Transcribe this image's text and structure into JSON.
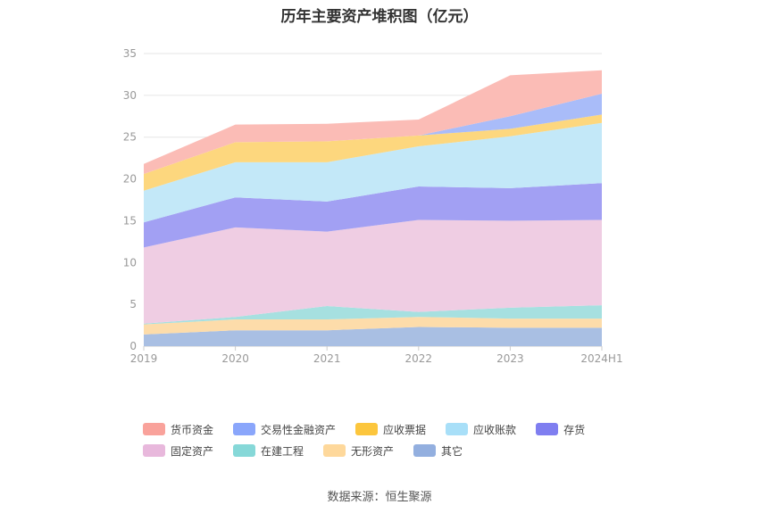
{
  "chart_data": {
    "type": "area",
    "stacked": true,
    "title": "历年主要资产堆积图（亿元）",
    "categories": [
      "2019",
      "2020",
      "2021",
      "2022",
      "2023",
      "2024H1"
    ],
    "ylim": [
      0,
      35
    ],
    "yticks": [
      0,
      5,
      10,
      15,
      20,
      25,
      30,
      35
    ],
    "grid": true,
    "legend_position": "bottom",
    "series": [
      {
        "name": "其它",
        "color": "#a9bfe3",
        "values": [
          1.4,
          1.9,
          1.9,
          2.3,
          2.2,
          2.2
        ]
      },
      {
        "name": "无形资产",
        "color": "#fddcaa",
        "values": [
          1.2,
          1.3,
          1.3,
          1.2,
          1.1,
          1.1
        ]
      },
      {
        "name": "在建工程",
        "color": "#a6e0e0",
        "values": [
          0.1,
          0.3,
          1.6,
          0.6,
          1.3,
          1.6
        ]
      },
      {
        "name": "固定资产",
        "color": "#efcde3",
        "values": [
          9.1,
          10.7,
          8.9,
          11.0,
          10.4,
          10.2
        ]
      },
      {
        "name": "存货",
        "color": "#a2a0f3",
        "values": [
          3.0,
          3.6,
          3.6,
          4.0,
          3.9,
          4.4
        ]
      },
      {
        "name": "应收账款",
        "color": "#c3e8f8",
        "values": [
          3.8,
          4.2,
          4.7,
          4.8,
          6.2,
          7.2
        ]
      },
      {
        "name": "应收票据",
        "color": "#fdd77e",
        "values": [
          2.0,
          2.4,
          2.5,
          1.3,
          0.9,
          1.0
        ]
      },
      {
        "name": "交易性金融资产",
        "color": "#a9bcf9",
        "values": [
          0.0,
          0.0,
          0.0,
          0.0,
          1.5,
          2.5
        ]
      },
      {
        "name": "货币资金",
        "color": "#fbbcb6",
        "values": [
          1.2,
          2.1,
          2.1,
          1.9,
          4.9,
          2.8
        ]
      }
    ]
  },
  "legend": {
    "items": [
      {
        "label": "货币资金",
        "color": "#f9a29b"
      },
      {
        "label": "交易性金融资产",
        "color": "#8aa6fb"
      },
      {
        "label": "应收票据",
        "color": "#fcc63d"
      },
      {
        "label": "应收账款",
        "color": "#a8dff8"
      },
      {
        "label": "存货",
        "color": "#7f7ef0"
      },
      {
        "label": "固定资产",
        "color": "#e8b8dc"
      },
      {
        "label": "在建工程",
        "color": "#86d8d8"
      },
      {
        "label": "无形资产",
        "color": "#fed89b"
      },
      {
        "label": "其它",
        "color": "#93afdf"
      }
    ]
  },
  "source": "数据来源：恒生聚源"
}
